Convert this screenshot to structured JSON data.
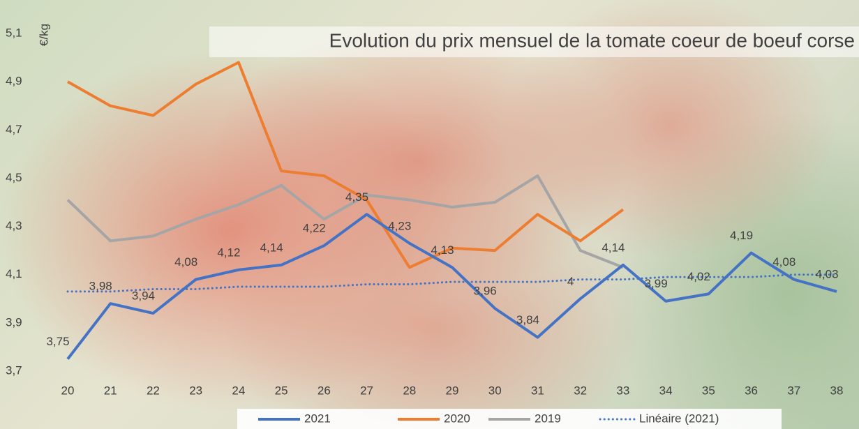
{
  "chart_data": {
    "type": "line",
    "title": "Evolution du prix mensuel de la tomate coeur de boeuf corse",
    "y_label": "€/kg",
    "categories": [
      "20",
      "21",
      "22",
      "23",
      "24",
      "25",
      "26",
      "27",
      "28",
      "29",
      "30",
      "31",
      "32",
      "33",
      "34",
      "35",
      "36",
      "37",
      "38"
    ],
    "ylim": [
      3.7,
      5.1
    ],
    "yticks": [
      {
        "value": 3.7,
        "label": "3,7"
      },
      {
        "value": 3.9,
        "label": "3,9"
      },
      {
        "value": 4.1,
        "label": "4,1"
      },
      {
        "value": 4.3,
        "label": "4,3"
      },
      {
        "value": 4.5,
        "label": "4,5"
      },
      {
        "value": 4.7,
        "label": "4,7"
      },
      {
        "value": 4.9,
        "label": "4,9"
      },
      {
        "value": 5.1,
        "label": "5,1"
      }
    ],
    "series": [
      {
        "name": "2021",
        "color": "#4472c4",
        "style": "solid",
        "values": [
          3.75,
          3.98,
          3.94,
          4.08,
          4.12,
          4.14,
          4.22,
          4.35,
          4.23,
          4.13,
          3.96,
          3.84,
          4,
          4.14,
          3.99,
          4.02,
          4.19,
          4.08,
          4.03
        ],
        "value_labels": [
          "3,75",
          "3,98",
          "3,94",
          "4,08",
          "4,12",
          "4,14",
          "4,22",
          "4,35",
          "4,23",
          "4,13",
          "3,96",
          "3,84",
          "4",
          "4,14",
          "3,99",
          "4,02",
          "4,19",
          "4,08",
          "4,03"
        ]
      },
      {
        "name": "2020",
        "color": "#ed7d31",
        "style": "solid",
        "values": [
          4.9,
          4.8,
          4.76,
          4.89,
          4.98,
          4.53,
          4.51,
          4.41,
          4.13,
          4.21,
          4.2,
          4.35,
          4.24,
          4.37,
          null,
          null,
          null,
          null,
          null
        ]
      },
      {
        "name": "2019",
        "color": "#a5a5a5",
        "style": "solid",
        "values": [
          4.41,
          4.24,
          4.26,
          4.33,
          4.39,
          4.47,
          4.33,
          4.43,
          4.41,
          4.38,
          4.4,
          4.51,
          4.2,
          4.13,
          null,
          null,
          null,
          null,
          null
        ]
      },
      {
        "name": "Linéaire (2021)",
        "color": "#4472c4",
        "style": "dotted",
        "values": [
          4.03,
          4.03,
          4.04,
          4.04,
          4.05,
          4.05,
          4.05,
          4.06,
          4.06,
          4.07,
          4.07,
          4.07,
          4.08,
          4.08,
          4.09,
          4.09,
          4.09,
          4.1,
          4.1
        ]
      }
    ]
  }
}
